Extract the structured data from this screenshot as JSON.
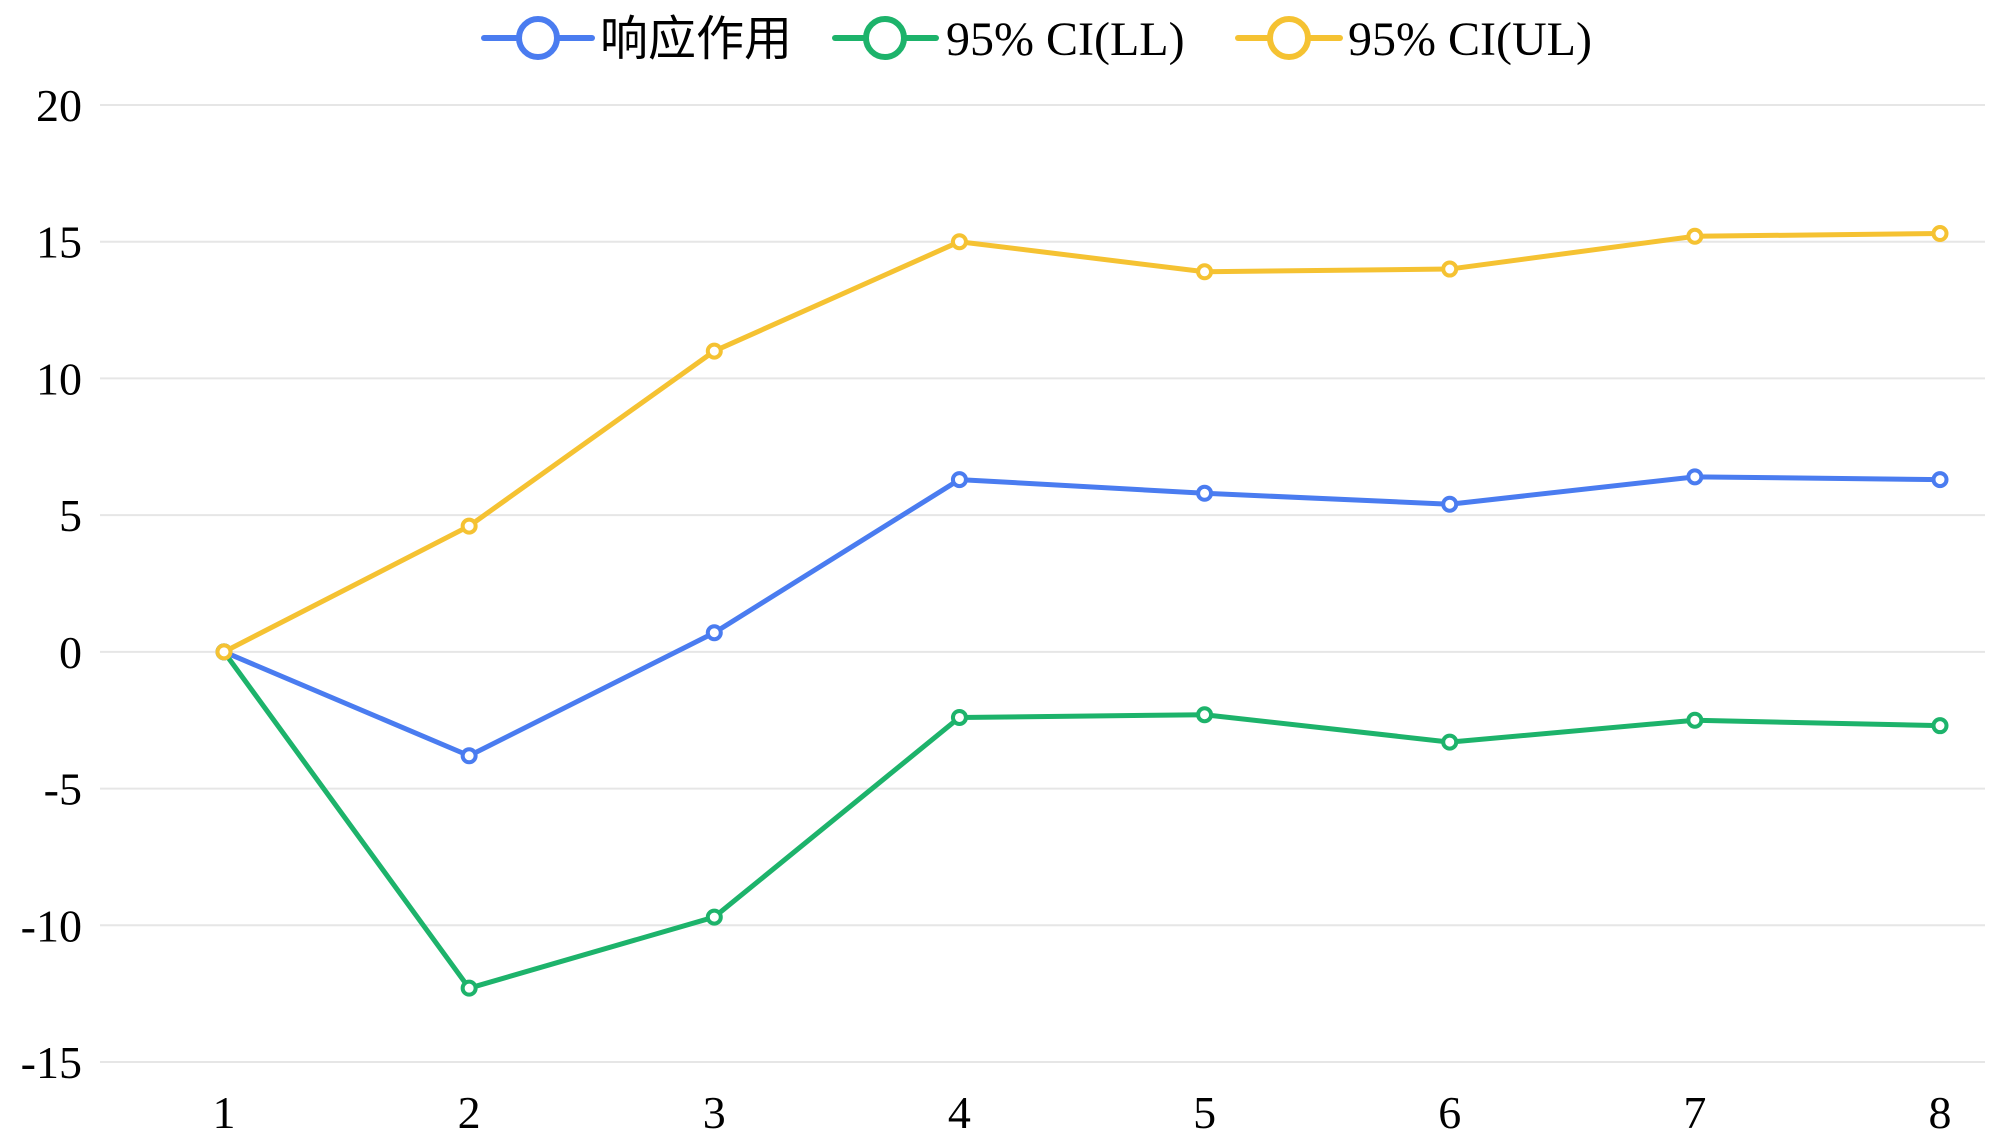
{
  "chart_data": {
    "type": "line",
    "title": "",
    "xlabel": "",
    "ylabel": "",
    "x": [
      1,
      2,
      3,
      4,
      5,
      6,
      7,
      8
    ],
    "ylim": [
      -15,
      20
    ],
    "yticks": [
      20,
      15,
      10,
      5,
      0,
      -5,
      -10,
      -15
    ],
    "xtick_labels": [
      "1",
      "2",
      "3",
      "4",
      "5",
      "6",
      "7",
      "8"
    ],
    "ytick_labels": [
      "20",
      "15",
      "10",
      "5",
      "0",
      "-5",
      "-10",
      "-15"
    ],
    "grid": true,
    "legend_position": "top",
    "series": [
      {
        "name": "响应作用",
        "color": "#4a7cf0",
        "values": [
          0,
          -3.8,
          0.7,
          6.3,
          5.8,
          5.4,
          6.4,
          6.3
        ]
      },
      {
        "name": "95% CI(LL)",
        "color": "#1db36b",
        "values": [
          0,
          -12.3,
          -9.7,
          -2.4,
          -2.3,
          -3.3,
          -2.5,
          -2.7
        ]
      },
      {
        "name": "95% CI(UL)",
        "color": "#f5c232",
        "values": [
          0,
          4.6,
          11.0,
          15.0,
          13.9,
          14.0,
          15.2,
          15.3
        ]
      }
    ]
  }
}
